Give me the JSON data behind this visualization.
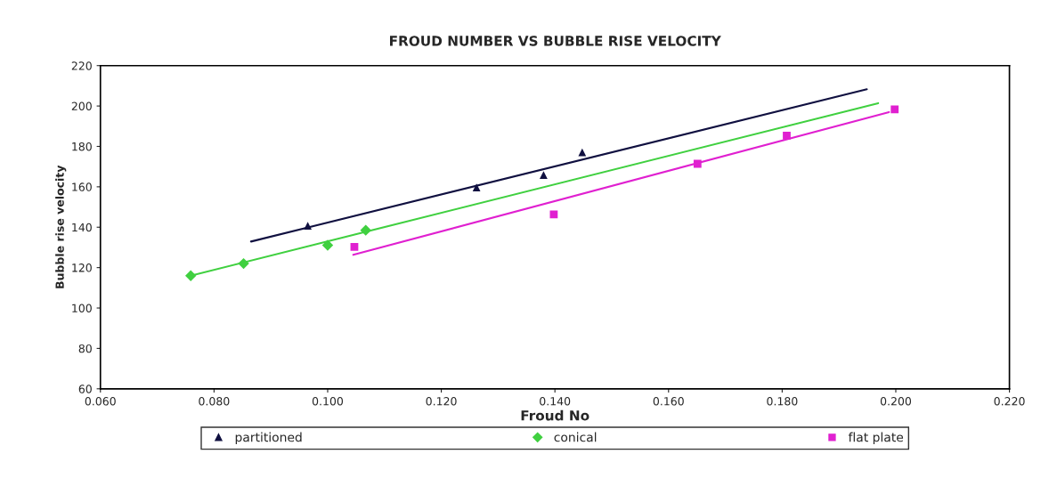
{
  "chart_data": {
    "type": "scatter",
    "title": "FROUD NUMBER VS BUBBLE RISE VELOCITY",
    "xlabel": "Froud No",
    "ylabel": "Bubble rise velocity",
    "xlim": [
      0.06,
      0.22
    ],
    "xticks": [
      {
        "value": 0.06,
        "label": "0.060"
      },
      {
        "value": 0.08,
        "label": "0.080"
      },
      {
        "value": 0.1,
        "label": "0.100"
      },
      {
        "value": 0.12,
        "label": "0.120"
      },
      {
        "value": 0.14,
        "label": "0.140"
      },
      {
        "value": 0.16,
        "label": "0.160"
      },
      {
        "value": 0.18,
        "label": "0.180"
      },
      {
        "value": 0.2,
        "label": "0.200"
      },
      {
        "value": 0.22,
        "label": "0.220"
      }
    ],
    "ylim": [
      60,
      220
    ],
    "yticks": [
      60,
      80,
      100,
      120,
      140,
      160,
      180,
      200,
      220
    ],
    "grid": false,
    "legend": "bottom",
    "series": [
      {
        "name": "partitioned",
        "marker": "triangle",
        "color": "#101040",
        "x": [
          0.0965,
          0.1262,
          0.138,
          0.1448
        ],
        "values": [
          140.7,
          159.7,
          165.8,
          177.1
        ]
      },
      {
        "name": "conical",
        "marker": "diamond",
        "color": "#40d040",
        "x": [
          0.0759,
          0.0852,
          0.1,
          0.1067
        ],
        "values": [
          116,
          122,
          131.1,
          138.5
        ]
      },
      {
        "name": "flat plate",
        "marker": "square",
        "color": "#e020d0",
        "x": [
          0.1047,
          0.1398,
          0.1651,
          0.1808,
          0.1998
        ],
        "values": [
          130.3,
          146.3,
          171.4,
          185.3,
          198.3
        ]
      },
      {
        "type": "line",
        "marker": "none",
        "color": "#101040",
        "x": [
          0.0865,
          0.1949
        ],
        "values": [
          132.9,
          208.3
        ]
      },
      {
        "type": "line",
        "marker": "none",
        "color": "#40d040",
        "x": [
          0.0759,
          0.1969
        ],
        "values": [
          116,
          201.4
        ]
      },
      {
        "type": "line",
        "marker": "none",
        "color": "#e020d0",
        "x": [
          0.1045,
          0.1988
        ],
        "values": [
          126.3,
          197
        ]
      }
    ]
  }
}
